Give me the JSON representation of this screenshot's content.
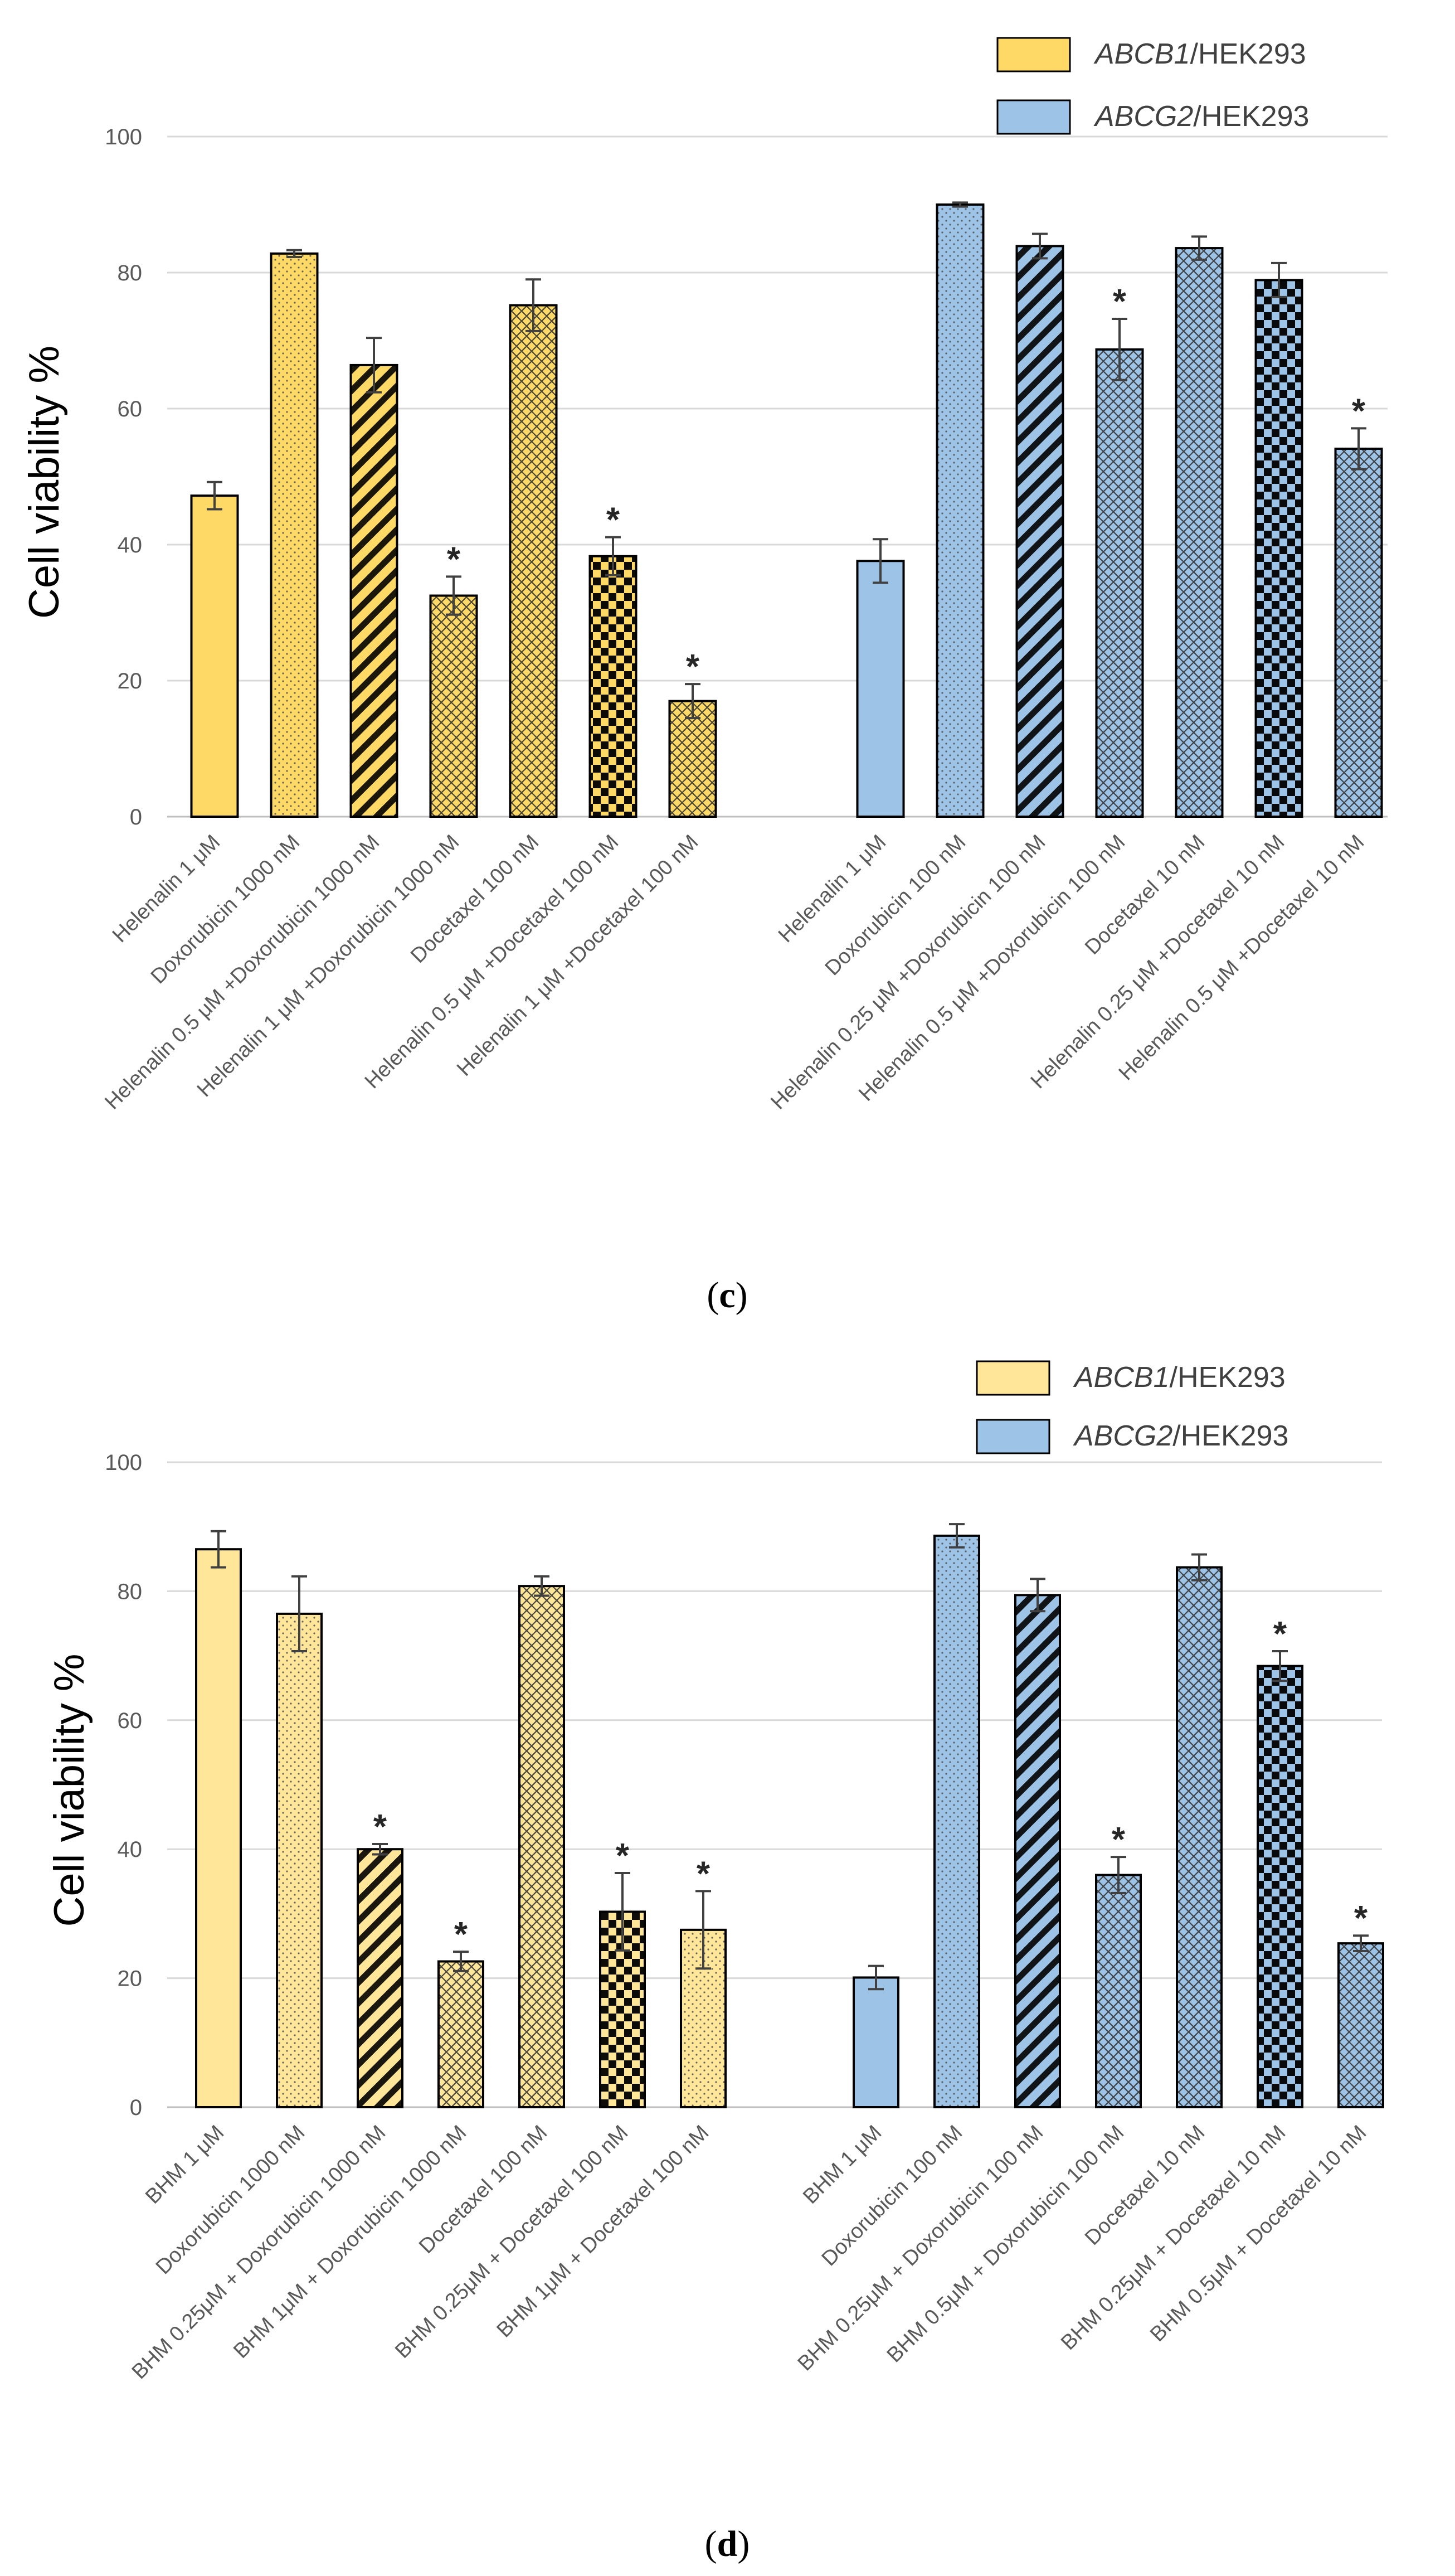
{
  "chart_data": [
    {
      "type": "bar",
      "panel_label": "c",
      "ylabel": "Cell viability %",
      "ylim": [
        0,
        100
      ],
      "yticks": [
        0,
        20,
        40,
        60,
        80,
        100
      ],
      "grid": true,
      "legend_position": "top-right",
      "legend": [
        {
          "gene": "ABCB1",
          "rest": "/HEK293",
          "color": "#FFD966"
        },
        {
          "gene": "ABCG2",
          "rest": "/HEK293",
          "color": "#9DC3E6"
        }
      ],
      "groups": [
        {
          "name": "ABCB1/HEK293",
          "color": "#FFD966",
          "categories": [
            "Helenalin 1 μM",
            "Doxorubicin 1000 nM",
            "Helenalin 0.5 μM +Doxorubicin 1000 nM",
            "Helenalin 1 μM +Doxorubicin 1000 nM",
            "Docetaxel 100 nM",
            "Helenalin 0.5 μM +Docetaxel 100 nM",
            "Helenalin 1 μM +Docetaxel 100 nM"
          ],
          "values": [
            47.2,
            82.8,
            66.4,
            32.5,
            75.2,
            38.3,
            17.0
          ],
          "errors": [
            2.0,
            0.5,
            4.0,
            2.8,
            3.8,
            2.8,
            2.5
          ],
          "patterns": [
            "solid",
            "dots",
            "diag",
            "cross",
            "cross",
            "check",
            "cross"
          ],
          "significant": [
            false,
            false,
            false,
            true,
            false,
            true,
            true
          ]
        },
        {
          "name": "ABCG2/HEK293",
          "color": "#9DC3E6",
          "categories": [
            "Helenalin 1 μM",
            "Doxorubicin 100 nM",
            "Helenalin 0.25 μM +Doxorubicin 100 nM",
            "Helenalin 0.5 μM +Doxorubicin 100 nM",
            "Docetaxel 10 nM",
            "Helenalin 0.25 μM +Docetaxel 10 nM",
            "Helenalin 0.5 μM +Docetaxel 10 nM"
          ],
          "values": [
            37.6,
            90.0,
            83.9,
            68.7,
            83.6,
            78.9,
            54.1
          ],
          "errors": [
            3.2,
            0.3,
            1.8,
            4.5,
            1.7,
            2.5,
            3.0
          ],
          "patterns": [
            "solid",
            "dots",
            "diag",
            "cross",
            "cross",
            "check",
            "cross"
          ],
          "significant": [
            false,
            false,
            false,
            true,
            false,
            false,
            true
          ]
        }
      ]
    },
    {
      "type": "bar",
      "panel_label": "d",
      "ylabel": "Cell viability %",
      "ylim": [
        0,
        100
      ],
      "yticks": [
        0,
        20,
        40,
        60,
        80,
        100
      ],
      "grid": true,
      "legend_position": "top-right",
      "legend": [
        {
          "gene": "ABCB1",
          "rest": "/HEK293",
          "color": "#FFE699"
        },
        {
          "gene": "ABCG2",
          "rest": "/HEK293",
          "color": "#9DC3E6"
        }
      ],
      "groups": [
        {
          "name": "ABCB1/HEK293",
          "color": "#FFE699",
          "categories": [
            "BHM 1 μM",
            "Doxorubicin 1000 nM",
            "BHM 0.25μM + Doxorubicin 1000 nM",
            "BHM 1μM + Doxorubicin 1000 nM",
            "Docetaxel 100 nM",
            "BHM 0.25μM + Docetaxel 100 nM",
            "BHM 1μM + Docetaxel 100 nM"
          ],
          "values": [
            86.5,
            76.5,
            40.0,
            22.6,
            80.8,
            30.3,
            27.5
          ],
          "errors": [
            2.8,
            5.8,
            0.8,
            1.5,
            1.5,
            6.0,
            6.0
          ],
          "patterns": [
            "solid",
            "dots",
            "diag",
            "cross",
            "cross",
            "check",
            "dots"
          ],
          "significant": [
            false,
            false,
            true,
            true,
            false,
            true,
            true
          ]
        },
        {
          "name": "ABCG2/HEK293",
          "color": "#9DC3E6",
          "categories": [
            "BHM 1 μM",
            "Doxorubicin 100 nM",
            "BHM 0.25μM + Doxorubicin 100 nM",
            "BHM 0.5μM + Doxorubicin 100 nM",
            "Docetaxel 10 nM",
            "BHM 0.25μM + Docetaxel 10 nM",
            "BHM 0.5μM + Docetaxel 10 nM"
          ],
          "values": [
            20.1,
            88.6,
            79.4,
            36.0,
            83.7,
            68.4,
            25.4
          ],
          "errors": [
            1.8,
            1.8,
            2.5,
            2.8,
            2.0,
            2.3,
            1.2
          ],
          "patterns": [
            "solid",
            "dots",
            "diag",
            "cross",
            "cross",
            "check",
            "cross"
          ],
          "significant": [
            false,
            false,
            false,
            true,
            false,
            true,
            true
          ]
        }
      ]
    }
  ],
  "significance_marker": "*"
}
